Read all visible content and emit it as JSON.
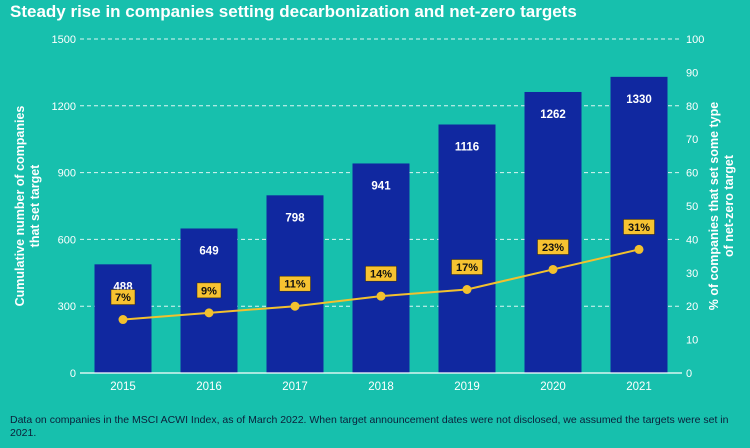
{
  "chart_data": {
    "type": "bar",
    "title": "Steady rise in companies setting decarbonization and net-zero targets",
    "categories": [
      "2015",
      "2016",
      "2017",
      "2018",
      "2019",
      "2020",
      "2021"
    ],
    "series": [
      {
        "name": "Cumulative number of companies that set target",
        "type": "bar",
        "axis": "left",
        "values": [
          488,
          649,
          798,
          941,
          1116,
          1262,
          1330
        ],
        "labels": [
          "488",
          "649",
          "798",
          "941",
          "1116",
          "1262",
          "1330"
        ]
      },
      {
        "name": "% of companies that set some type of net-zero target",
        "type": "line",
        "axis": "right",
        "values": [
          7,
          9,
          11,
          14,
          17,
          23,
          31
        ],
        "labels": [
          "7%",
          "9%",
          "11%",
          "14%",
          "17%",
          "23%",
          "31%"
        ],
        "y_mapped": [
          16,
          18,
          20,
          23,
          25,
          31,
          37
        ]
      }
    ],
    "ylabel": "Cumulative number of companies that set target",
    "ylabel_lines": [
      "Cumulative number of companies",
      "that set target"
    ],
    "y2label": "% of companies that set some type of net-zero target",
    "y2label_lines": [
      "% of companies that set some type",
      "of net-zero target"
    ],
    "ylim": [
      0,
      1500
    ],
    "y2lim": [
      0,
      100
    ],
    "yticks": [
      "0",
      "300",
      "600",
      "900",
      "1200",
      "1500"
    ],
    "y2ticks": [
      "0",
      "10",
      "20",
      "30",
      "40",
      "50",
      "60",
      "70",
      "80",
      "90",
      "100"
    ],
    "grid": true
  },
  "footnote": "Data on companies in the MSCI ACWI Index, as of March 2022. When target announcement dates were not disclosed, we assumed the targets were set in 2021.",
  "colors": {
    "background": "#17c0ad",
    "bar": "#1028a0",
    "line": "#f2c12e",
    "label_box": "#f7c331",
    "text": "#ffffff",
    "footnote": "#0b1f3a"
  }
}
